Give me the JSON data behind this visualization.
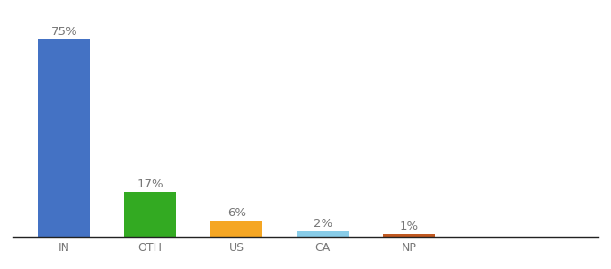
{
  "categories": [
    "IN",
    "OTH",
    "US",
    "CA",
    "NP"
  ],
  "values": [
    75,
    17,
    6,
    2,
    1
  ],
  "labels": [
    "75%",
    "17%",
    "6%",
    "2%",
    "1%"
  ],
  "bar_colors": [
    "#4472c4",
    "#33aa22",
    "#f5a623",
    "#88cce8",
    "#c05820"
  ],
  "background_color": "#ffffff",
  "ylim": [
    0,
    83
  ],
  "label_fontsize": 9.5,
  "tick_fontsize": 9,
  "bar_width": 0.6
}
